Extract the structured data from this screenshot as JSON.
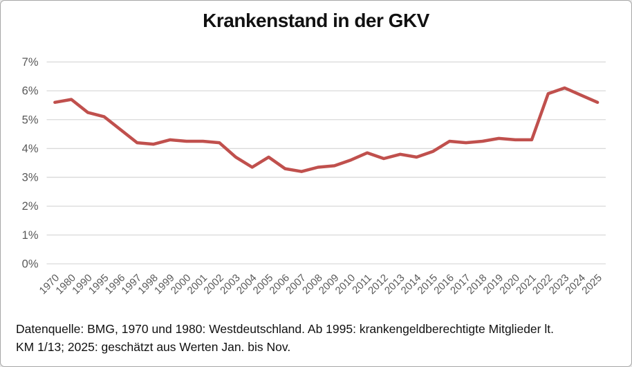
{
  "title": "Krankenstand in der GKV",
  "footnote": {
    "line1": "Datenquelle: BMG, 1970 und 1980: Westdeutschland. Ab 1995: krankengeldberechtigte Mitglieder lt.",
    "line2": "KM 1/13; 2025: geschätzt aus Werten Jan. bis Nov."
  },
  "colors": {
    "line": "#C0504D",
    "gridline": "#D9D9D9",
    "axis_label": "#595959",
    "title_text": "#111111",
    "footnote_text": "#111111",
    "background": "#FFFFFF",
    "border": "#A6A6A6"
  },
  "chart_data": {
    "type": "line",
    "title": "Krankenstand in der GKV",
    "xlabel": "",
    "ylabel": "",
    "categories": [
      "1970",
      "1980",
      "1990",
      "1995",
      "1996",
      "1997",
      "1998",
      "1999",
      "2000",
      "2001",
      "2002",
      "2003",
      "2004",
      "2005",
      "2006",
      "2007",
      "2008",
      "2009",
      "2010",
      "2011",
      "2012",
      "2013",
      "2014",
      "2015",
      "2016",
      "2017",
      "2018",
      "2019",
      "2020",
      "2021",
      "2022",
      "2023",
      "2024",
      "2025"
    ],
    "values": [
      5.6,
      5.7,
      5.25,
      5.1,
      4.65,
      4.2,
      4.15,
      4.3,
      4.25,
      4.25,
      4.2,
      3.7,
      3.35,
      3.7,
      3.3,
      3.2,
      3.35,
      3.4,
      3.6,
      3.85,
      3.65,
      3.8,
      3.7,
      3.9,
      4.25,
      4.2,
      4.25,
      4.35,
      4.3,
      4.3,
      5.9,
      6.1,
      5.85,
      5.6
    ],
    "ylim": [
      0,
      7
    ],
    "ytick_step": 1,
    "ytick_labels": [
      "0%",
      "1%",
      "2%",
      "3%",
      "4%",
      "5%",
      "6%",
      "7%"
    ],
    "grid": true,
    "legend": false,
    "series_name": "Krankenstand",
    "line_width": 4.5,
    "x_label_rotation_deg": -45
  }
}
